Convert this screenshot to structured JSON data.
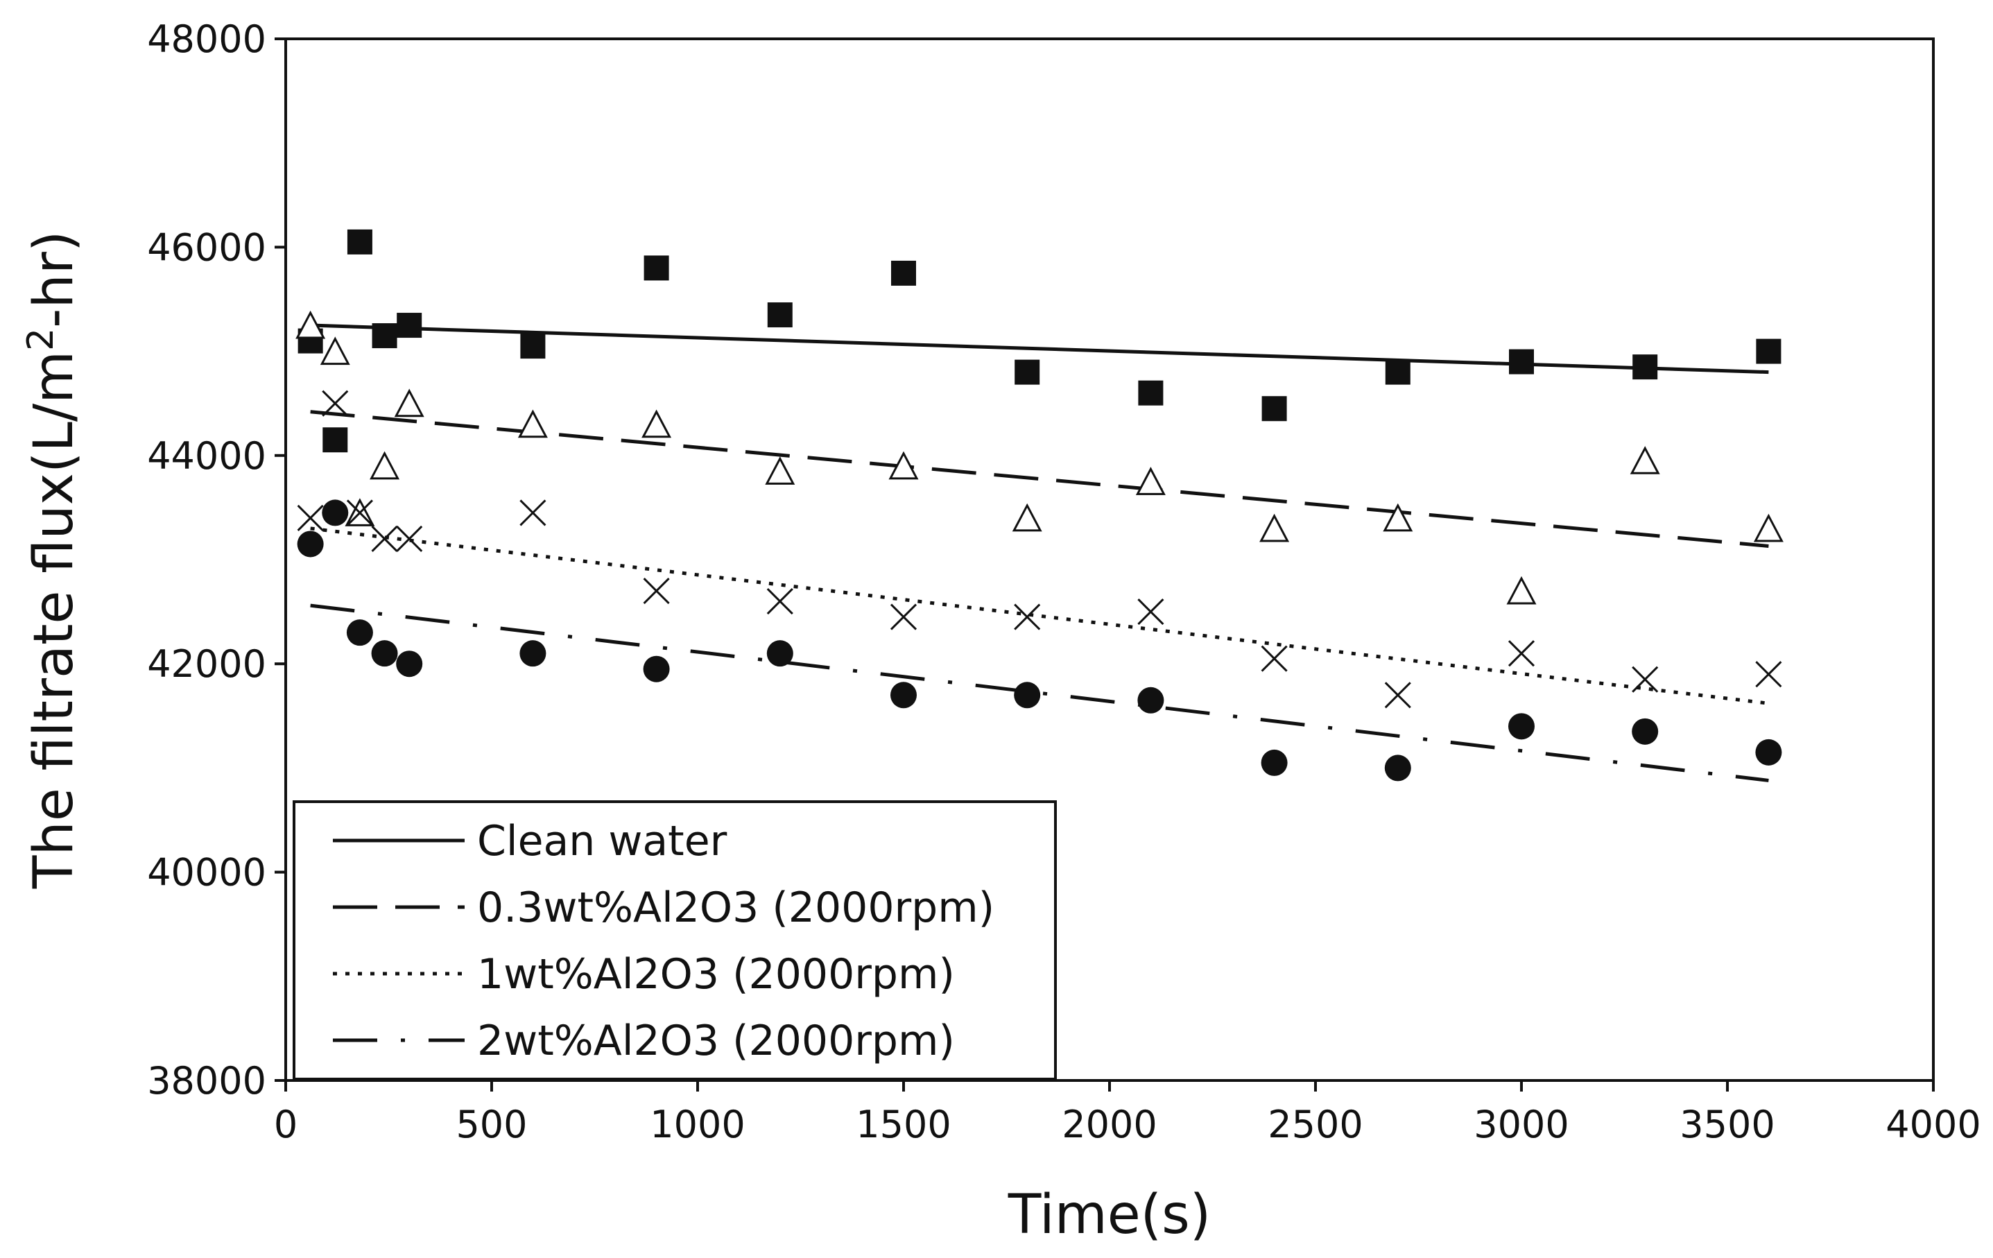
{
  "chart_data": {
    "type": "scatter",
    "title": "",
    "xlabel": "Time(s)",
    "ylabel_main": "The filtrate flux(L/m",
    "ylabel_sup": "2",
    "ylabel_tail": "-hr)",
    "xlim": [
      0,
      4000
    ],
    "ylim": [
      38000,
      48000
    ],
    "xticks": [
      0,
      500,
      1000,
      1500,
      2000,
      2500,
      3000,
      3500,
      4000
    ],
    "yticks": [
      38000,
      40000,
      42000,
      44000,
      46000,
      48000
    ],
    "xtick_labels": [
      "0",
      "500",
      "1000",
      "1500",
      "2000",
      "2500",
      "3000",
      "3500",
      "4000"
    ],
    "ytick_labels": [
      "38000",
      "40000",
      "42000",
      "44000",
      "46000",
      "48000"
    ],
    "grid": false,
    "legend_position": "bottom-left",
    "series": [
      {
        "name": "Clean water",
        "marker": "square",
        "line_style": "solid",
        "x": [
          60,
          120,
          180,
          240,
          300,
          600,
          900,
          1200,
          1500,
          1800,
          2100,
          2400,
          2700,
          3000,
          3300,
          3600
        ],
        "y": [
          45100,
          44150,
          46050,
          45150,
          45250,
          45050,
          45800,
          45350,
          45750,
          44800,
          44600,
          44450,
          44800,
          44900,
          44850,
          45000
        ],
        "trend": [
          [
            60,
            45250
          ],
          [
            3600,
            44800
          ]
        ]
      },
      {
        "name": "0.3wt%Al2O3 (2000rpm)",
        "marker": "triangle",
        "line_style": "dashed",
        "x": [
          60,
          120,
          180,
          240,
          300,
          600,
          900,
          1200,
          1500,
          1800,
          2100,
          2400,
          2700,
          3000,
          3300,
          3600
        ],
        "y": [
          45250,
          45000,
          43450,
          43900,
          44500,
          44300,
          44300,
          43850,
          43900,
          43400,
          43750,
          43300,
          43400,
          42700,
          43950,
          43300
        ],
        "trend": [
          [
            60,
            44420
          ],
          [
            3600,
            43130
          ]
        ]
      },
      {
        "name": "1wt%Al2O3 (2000rpm)",
        "marker": "cross",
        "line_style": "dotted",
        "x": [
          60,
          120,
          180,
          240,
          300,
          600,
          900,
          1200,
          1500,
          1800,
          2100,
          2400,
          2700,
          3000,
          3300,
          3600
        ],
        "y": [
          43400,
          44500,
          43450,
          43200,
          43200,
          43450,
          42700,
          42600,
          42450,
          42450,
          42500,
          42050,
          41700,
          42100,
          41850,
          41900
        ],
        "trend": [
          [
            60,
            43300
          ],
          [
            3600,
            41620
          ]
        ]
      },
      {
        "name": "2wt%Al2O3 (2000rpm)",
        "marker": "circle",
        "line_style": "dashdot",
        "x": [
          60,
          120,
          180,
          240,
          300,
          600,
          900,
          1200,
          1500,
          1800,
          2100,
          2400,
          2700,
          3000,
          3300,
          3600
        ],
        "y": [
          43150,
          43450,
          42300,
          42100,
          42000,
          42100,
          41950,
          42100,
          41700,
          41700,
          41650,
          41050,
          41000,
          41400,
          41350,
          41150
        ],
        "trend": [
          [
            60,
            42560
          ],
          [
            3600,
            40880
          ]
        ]
      }
    ]
  }
}
